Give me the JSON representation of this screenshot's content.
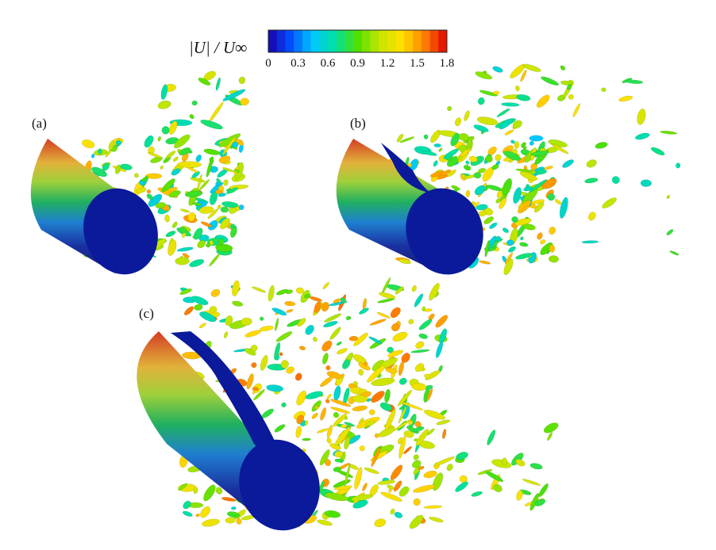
{
  "colorbar": {
    "label": "|U| / U∞",
    "ticks": [
      "0",
      "0.3",
      "0.6",
      "0.9",
      "1.2",
      "1.5",
      "1.8"
    ],
    "range": [
      0,
      1.8
    ],
    "bands": 21,
    "colormap": [
      "#1a00a8",
      "#0050ff",
      "#00c8ff",
      "#00e0a0",
      "#50e000",
      "#c8e600",
      "#ffe000",
      "#ff8000",
      "#e00000"
    ]
  },
  "panels": [
    {
      "label": "(a)"
    },
    {
      "label": "(b)"
    },
    {
      "label": "(c)"
    }
  ]
}
